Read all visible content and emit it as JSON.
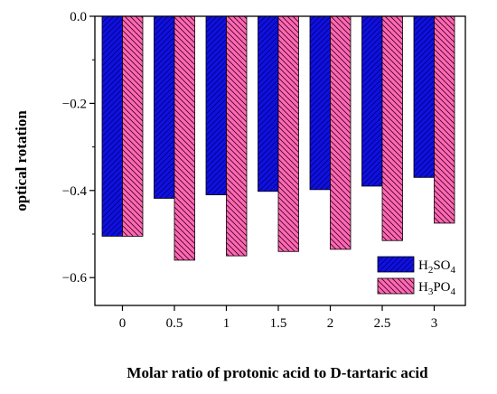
{
  "chart_data": {
    "type": "bar",
    "categories": [
      "0",
      "0.5",
      "1",
      "1.5",
      "2",
      "2.5",
      "3"
    ],
    "series": [
      {
        "name": "H2SO4",
        "values": [
          -0.505,
          -0.418,
          -0.41,
          -0.402,
          -0.398,
          -0.39,
          -0.37
        ],
        "color": "#1010e0",
        "pattern": "solid"
      },
      {
        "name": "H3PO4",
        "values": [
          -0.505,
          -0.56,
          -0.55,
          -0.54,
          -0.535,
          -0.515,
          -0.475
        ],
        "color": "#ff69b4",
        "pattern": "hatched"
      }
    ],
    "xlabel": "Molar ratio of protonic acid to D-tartaric acid",
    "ylabel": "optical rotation",
    "ylim": [
      -0.65,
      0.0
    ],
    "yticks": [
      "0.0",
      "−0.2",
      "−0.4",
      "−0.6"
    ],
    "legend_labels": [
      {
        "base": "H",
        "sub1": "2",
        "mid": "SO",
        "sub2": "4"
      },
      {
        "base": "H",
        "sub1": "3",
        "mid": "PO",
        "sub2": "4"
      }
    ],
    "legend_position": "bottom-right",
    "grid": false
  }
}
